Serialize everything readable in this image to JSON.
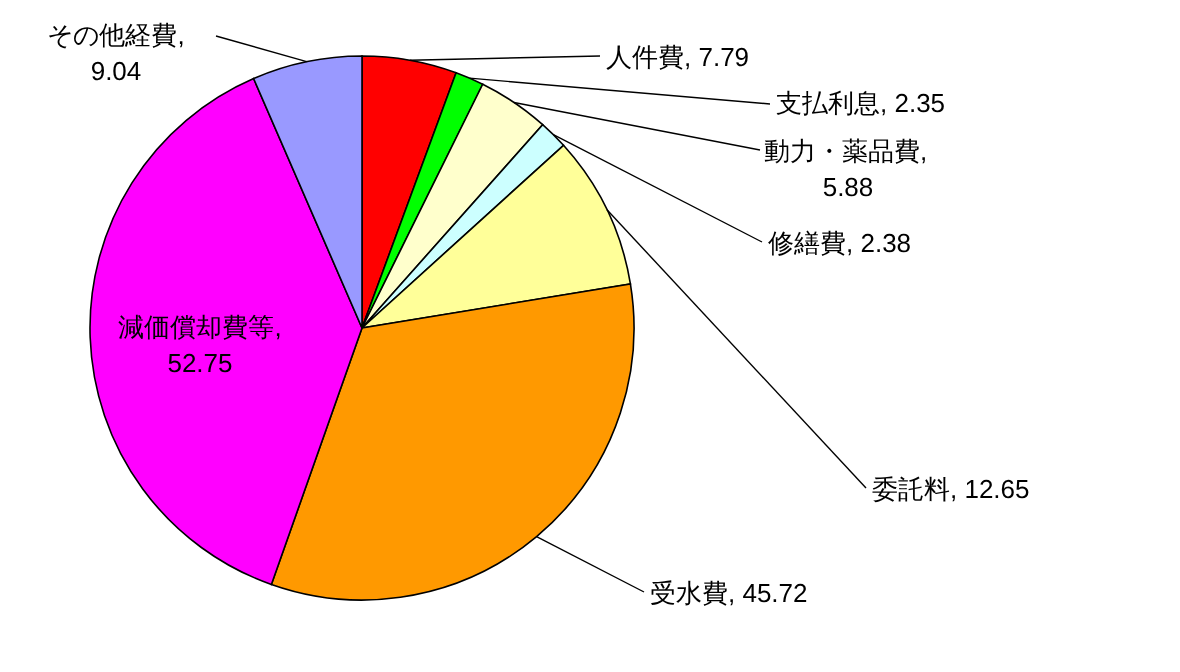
{
  "chart_data": {
    "type": "pie",
    "categories": [
      "人件費",
      "支払利息",
      "動力・薬品費",
      "修繕費",
      "委託料",
      "受水費",
      "減価償却費等",
      "その他経費"
    ],
    "values": [
      7.79,
      2.35,
      5.88,
      2.38,
      12.65,
      45.72,
      52.75,
      9.04
    ],
    "colors": [
      "#ff0000",
      "#00ff00",
      "#ffffcc",
      "#ccffff",
      "#ffff99",
      "#ff9900",
      "#ff00ff",
      "#9999ff"
    ],
    "value_labels": [
      ", 7.79",
      ", 2.35",
      ", 5.88",
      ", 2.38",
      ", 12.65",
      ", 45.72",
      ", 52.75",
      ", 9.04"
    ]
  }
}
